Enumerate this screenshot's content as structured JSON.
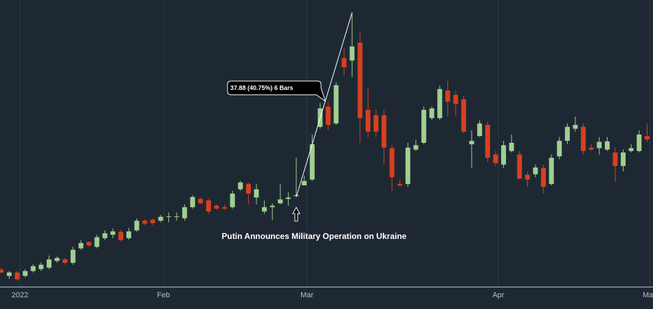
{
  "chart_data": {
    "type": "candlestick",
    "categories": [
      null,
      null,
      null,
      "2022",
      null,
      null,
      null,
      null,
      null,
      null,
      null,
      null,
      null,
      null,
      null,
      null,
      null,
      null,
      null,
      null,
      null,
      "Feb",
      null,
      null,
      null,
      null,
      null,
      null,
      null,
      null,
      null,
      null,
      null,
      null,
      null,
      null,
      null,
      null,
      null,
      "Mar",
      null,
      null,
      null,
      null,
      null,
      null,
      null,
      null,
      null,
      null,
      null,
      null,
      null,
      null,
      null,
      null,
      null,
      null,
      null,
      null,
      null,
      null,
      null,
      "Apr",
      null,
      null,
      null,
      null,
      null,
      null,
      null,
      null,
      null,
      null,
      null,
      null,
      null,
      null,
      null,
      null,
      null,
      null,
      "May"
    ],
    "open": [
      76.9,
      77.7,
      76.4,
      77.1,
      76.4,
      77.4,
      77.8,
      78.1,
      79.5,
      79.8,
      79.1,
      82.1,
      83.4,
      82.4,
      84.2,
      84.9,
      85.5,
      84.2,
      85.8,
      87.8,
      88.0,
      87.8,
      88.6,
      88.6,
      88.3,
      90.6,
      92.3,
      92.0,
      90.9,
      90.6,
      90.6,
      94.3,
      95.4,
      92.6,
      89.7,
      90.6,
      91.4,
      92.3,
      92.9,
      95.1,
      96.3,
      107.2,
      111.4,
      107.9,
      121.4,
      120.9,
      124.6,
      110.7,
      109.6,
      109.6,
      102.8,
      95.4,
      95.4,
      102.5,
      103.9,
      109.0,
      109.0,
      114.7,
      113.8,
      112.9,
      103.6,
      105.3,
      107.6,
      101.5,
      99.4,
      102.2,
      101.5,
      97.3,
      97.4,
      98.7,
      95.4,
      101.1,
      104.3,
      106.8,
      107.2,
      102.9,
      102.8,
      102.5,
      101.9,
      99.1,
      102.2,
      102.2,
      105.3
    ],
    "high": [
      78.1,
      78.1,
      77.4,
      77.4,
      77.8,
      78.8,
      79.2,
      80.6,
      80.4,
      80.1,
      82.4,
      83.8,
      83.6,
      84.9,
      85.8,
      86.2,
      85.9,
      86.3,
      88.3,
      88.0,
      88.3,
      89.0,
      89.5,
      89.5,
      91.2,
      93.1,
      92.6,
      92.3,
      91.2,
      91.2,
      94.0,
      96.0,
      95.7,
      95.4,
      92.0,
      91.4,
      95.4,
      93.7,
      100.8,
      97.1,
      105.6,
      112.1,
      112.4,
      116.4,
      123.5,
      130.8,
      127.0,
      115.0,
      110.7,
      110.7,
      103.4,
      96.3,
      103.9,
      104.5,
      111.4,
      111.4,
      115.7,
      116.7,
      114.7,
      113.6,
      106.5,
      108.6,
      108.2,
      102.2,
      104.3,
      105.6,
      102.2,
      98.0,
      99.4,
      99.4,
      101.5,
      105.1,
      107.9,
      109.3,
      107.9,
      103.6,
      105.1,
      105.1,
      102.9,
      102.5,
      103.6,
      106.5,
      107.9
    ],
    "low": [
      76.4,
      77.0,
      75.8,
      75.4,
      76.1,
      77.1,
      77.4,
      77.8,
      79.1,
      78.7,
      78.7,
      81.8,
      82.4,
      82.1,
      83.8,
      84.2,
      83.5,
      83.9,
      85.5,
      86.9,
      86.9,
      87.5,
      87.5,
      87.8,
      87.8,
      90.3,
      91.2,
      89.2,
      90.0,
      90.0,
      90.3,
      94.0,
      91.2,
      91.2,
      89.2,
      88.0,
      91.2,
      90.9,
      92.7,
      95.1,
      96.0,
      106.8,
      106.5,
      107.6,
      117.8,
      117.5,
      103.9,
      105.1,
      105.1,
      99.4,
      94.0,
      94.8,
      94.8,
      102.2,
      103.6,
      108.6,
      108.6,
      109.3,
      109.3,
      105.8,
      98.7,
      105.1,
      99.9,
      99.1,
      98.7,
      101.9,
      96.3,
      94.8,
      96.8,
      93.4,
      95.1,
      100.5,
      103.6,
      106.2,
      101.5,
      102.2,
      101.5,
      102.2,
      95.8,
      98.0,
      101.9,
      101.9,
      104.1
    ],
    "close": [
      77.5,
      77.1,
      77.1,
      75.7,
      77.4,
      78.4,
      78.7,
      79.8,
      80.1,
      79.1,
      81.8,
      83.2,
      82.7,
      84.4,
      85.2,
      85.6,
      83.8,
      85.6,
      87.8,
      87.2,
      87.3,
      88.6,
      88.7,
      88.7,
      90.6,
      92.7,
      91.4,
      89.7,
      90.3,
      90.3,
      93.4,
      95.7,
      93.4,
      94.3,
      90.6,
      90.9,
      92.2,
      92.6,
      93.1,
      96.0,
      103.6,
      111.0,
      107.6,
      115.8,
      119.5,
      123.8,
      109.0,
      106.2,
      106.2,
      102.9,
      96.8,
      95.1,
      102.9,
      103.4,
      110.7,
      111.0,
      115.0,
      112.4,
      111.9,
      106.2,
      104.3,
      107.9,
      100.8,
      99.7,
      103.4,
      103.9,
      96.5,
      96.3,
      98.8,
      94.8,
      100.8,
      104.3,
      107.2,
      107.6,
      102.2,
      102.5,
      104.1,
      104.2,
      99.1,
      101.9,
      102.8,
      105.6,
      104.6
    ],
    "up_color": "#9fd08f",
    "down_color": "#d7401f",
    "ylim": [
      74.1,
      133.4
    ],
    "grid": true,
    "annotations": [
      "37.88 (40.75%) 6 Bars",
      "Putin Announces Military Operation on Ukraine"
    ]
  }
}
